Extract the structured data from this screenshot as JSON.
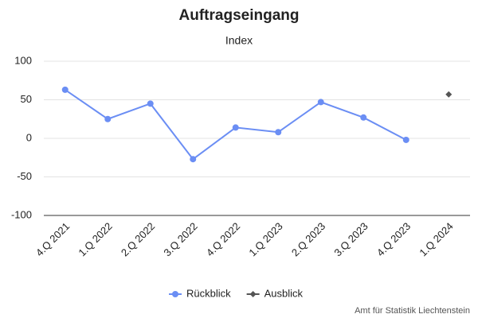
{
  "chart_data": {
    "type": "line",
    "title": "Auftragseingang",
    "subtitle": "Index",
    "categories": [
      "4.Q 2021",
      "1.Q 2022",
      "2.Q 2022",
      "3.Q 2022",
      "4.Q 2022",
      "1.Q 2023",
      "2.Q 2023",
      "3.Q 2023",
      "4.Q 2023",
      "1.Q 2024"
    ],
    "series": [
      {
        "name": "Rückblick",
        "color": "#6b8ef4",
        "marker": "circle",
        "values": [
          63,
          25,
          45,
          -27,
          14,
          8,
          47,
          27,
          -2,
          null
        ]
      },
      {
        "name": "Ausblick",
        "color": "#555555",
        "marker": "diamond",
        "values": [
          null,
          null,
          null,
          null,
          null,
          null,
          null,
          null,
          null,
          57
        ]
      }
    ],
    "ylim": [
      -100,
      100
    ],
    "yticks": [
      -100,
      -50,
      0,
      50,
      100
    ],
    "grid": true,
    "legend": "bottom",
    "credit": "Amt für Statistik Liechtenstein"
  }
}
